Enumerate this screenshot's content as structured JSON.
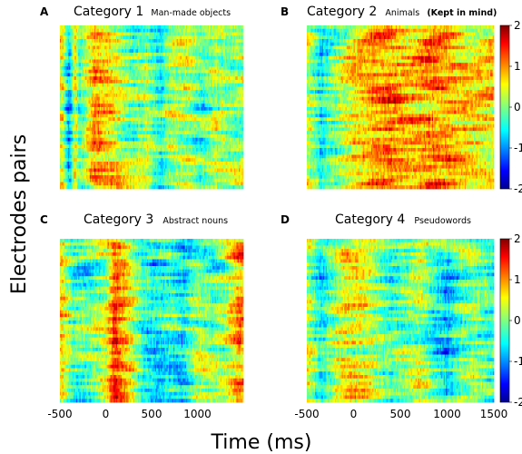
{
  "chart_data": {
    "type": "heatmap",
    "panels": [
      {
        "letter": "A",
        "title": "Category 1",
        "subtitle": "Man-made objects",
        "subtitle_note": ""
      },
      {
        "letter": "B",
        "title": "Category 2",
        "subtitle": "Animals",
        "subtitle_note": "(Kept in mind)"
      },
      {
        "letter": "C",
        "title": "Category 3",
        "subtitle": "Abstract nouns",
        "subtitle_note": ""
      },
      {
        "letter": "D",
        "title": "Category 4",
        "subtitle": "Pseudowords",
        "subtitle_note": ""
      }
    ],
    "x_axis": {
      "label": "Time (ms)",
      "range": [
        -500,
        1500
      ],
      "ticks_left_panel": [
        "-500",
        "0",
        "500",
        "1000"
      ],
      "ticks_right_panel": [
        "-500",
        "0",
        "500",
        "1000",
        "1500"
      ]
    },
    "y_axis": {
      "label": "Electrodes pairs"
    },
    "colorbar": {
      "range": [
        -2,
        2
      ],
      "ticks": [
        "2",
        "1",
        "0",
        "-1",
        "-2"
      ],
      "colormap": "jet"
    },
    "cell_grid": {
      "time_points": 160,
      "electrode_pairs": 48
    },
    "profiles": {
      "A": [
        [
          -470,
          0.4
        ],
        [
          -400,
          -0.9
        ],
        [
          -330,
          0.5
        ],
        [
          -290,
          -0.3
        ],
        [
          -120,
          0.9
        ],
        [
          80,
          0.5
        ],
        [
          200,
          0.1
        ],
        [
          300,
          -0.1
        ],
        [
          450,
          0.2
        ],
        [
          600,
          -0.4
        ],
        [
          700,
          0.2
        ],
        [
          900,
          0.2
        ],
        [
          1050,
          -0.3
        ],
        [
          1200,
          0.2
        ],
        [
          1350,
          0.0
        ],
        [
          1450,
          0.1
        ]
      ],
      "B": [
        [
          -470,
          0.3
        ],
        [
          -350,
          -0.5
        ],
        [
          -200,
          0.0
        ],
        [
          0,
          0.6
        ],
        [
          200,
          0.9
        ],
        [
          400,
          1.0
        ],
        [
          600,
          0.8
        ],
        [
          800,
          1.0
        ],
        [
          1000,
          0.9
        ],
        [
          1200,
          0.8
        ],
        [
          1450,
          0.6
        ]
      ],
      "C": [
        [
          -470,
          0.6
        ],
        [
          -350,
          -0.2
        ],
        [
          -200,
          -0.2
        ],
        [
          0,
          0.2
        ],
        [
          100,
          1.2
        ],
        [
          250,
          0.5
        ],
        [
          400,
          -0.4
        ],
        [
          550,
          -0.6
        ],
        [
          700,
          -0.3
        ],
        [
          850,
          -0.5
        ],
        [
          1000,
          0.2
        ],
        [
          1150,
          -0.1
        ],
        [
          1300,
          0.0
        ],
        [
          1450,
          0.8
        ]
      ],
      "D": [
        [
          -470,
          0.3
        ],
        [
          -350,
          -0.4
        ],
        [
          -250,
          0.0
        ],
        [
          -100,
          0.5
        ],
        [
          100,
          0.4
        ],
        [
          250,
          0.1
        ],
        [
          400,
          -0.2
        ],
        [
          550,
          0.0
        ],
        [
          700,
          0.3
        ],
        [
          900,
          -0.4
        ],
        [
          1000,
          -0.6
        ],
        [
          1150,
          -0.1
        ],
        [
          1300,
          0.0
        ],
        [
          1450,
          -0.3
        ]
      ]
    }
  }
}
